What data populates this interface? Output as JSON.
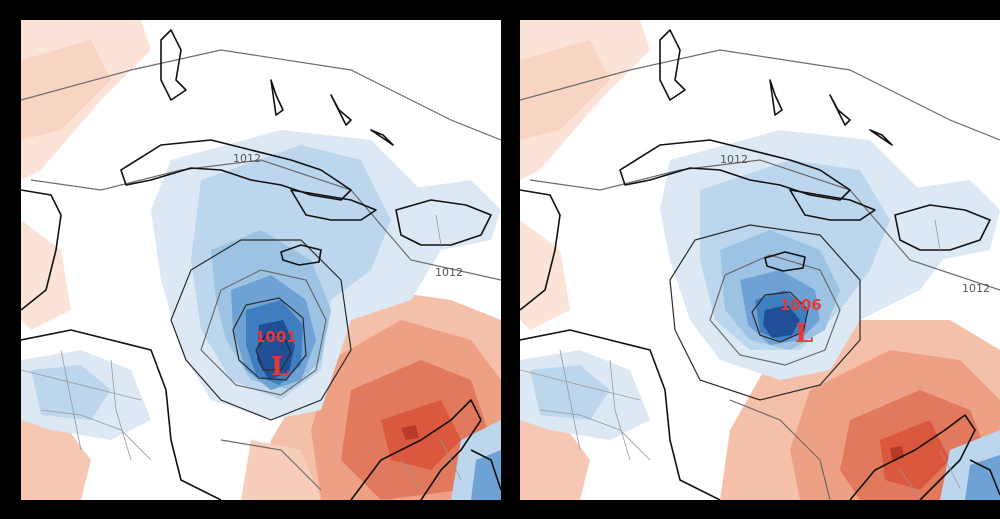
{
  "panels": [
    {
      "isobar_labels": [
        "1012",
        "1012"
      ],
      "low": {
        "pressure": "1001",
        "letter": "L"
      }
    },
    {
      "isobar_labels": [
        "1012",
        "1012"
      ],
      "low": {
        "pressure": "1006",
        "letter": "L"
      }
    }
  ],
  "colors": {
    "background": "#000000",
    "map_background": "#ffffff",
    "negative_anomaly_light": "#dce9f5",
    "negative_anomaly_mid": "#9cc3e4",
    "negative_anomaly_strong": "#3f7fc0",
    "negative_anomaly_core": "#1f4f96",
    "positive_anomaly_light": "#fbe3d8",
    "positive_anomaly_mid": "#f2a98e",
    "positive_anomaly_strong": "#d9583e",
    "low_label": "#e23a3a",
    "coastline": "#111111"
  }
}
